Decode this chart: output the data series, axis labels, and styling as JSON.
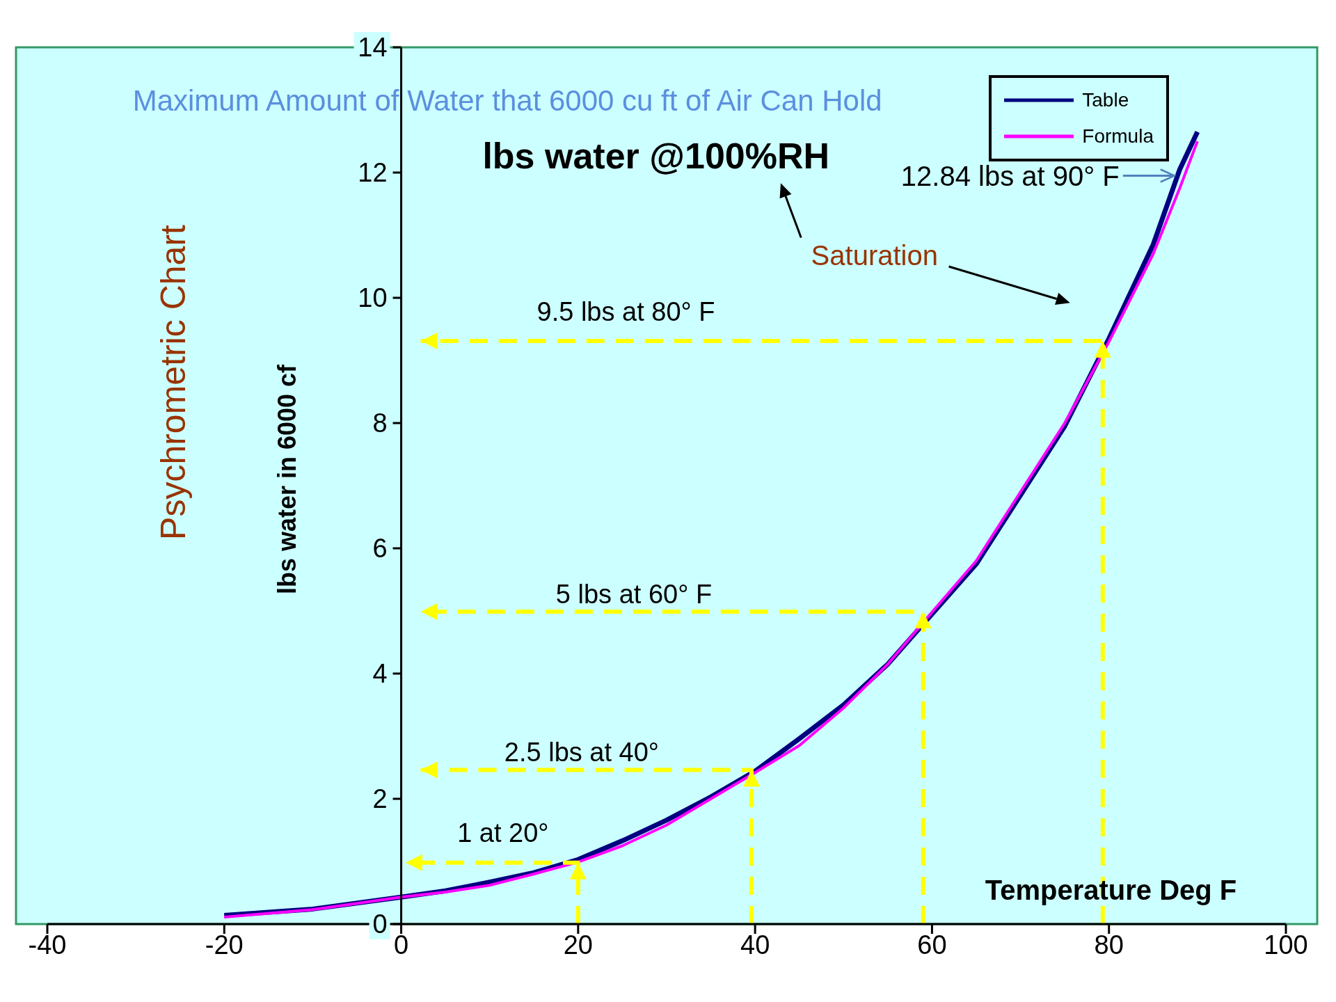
{
  "chart_data": {
    "type": "line",
    "title": "Maximum Amount of Water that 6000 cu ft of Air Can Hold",
    "subtitle": "lbs water @100%RH",
    "xlabel": "Temperature Deg F",
    "ylabel": "lbs water in 6000 cf",
    "x": [
      -20,
      -10,
      0,
      5,
      10,
      15,
      20,
      25,
      30,
      35,
      40,
      45,
      50,
      55,
      60,
      65,
      70,
      75,
      80,
      85,
      88,
      90
    ],
    "series": [
      {
        "name": "Table",
        "color": "#000080",
        "values": [
          0.14,
          0.24,
          0.43,
          0.53,
          0.67,
          0.82,
          1.03,
          1.33,
          1.66,
          2.03,
          2.44,
          2.96,
          3.5,
          4.15,
          4.95,
          5.75,
          6.85,
          7.95,
          9.35,
          10.85,
          12.05,
          12.65
        ]
      },
      {
        "name": "Formula",
        "color": "#ff00ff",
        "values": [
          0.11,
          0.23,
          0.43,
          0.51,
          0.62,
          0.8,
          0.99,
          1.25,
          1.58,
          2.0,
          2.42,
          2.85,
          3.45,
          4.15,
          4.98,
          5.8,
          6.9,
          8.0,
          9.3,
          10.7,
          11.75,
          12.5
        ]
      },
      {
        "color": "#ffff00",
        "line_style": "dashed",
        "x": [
          20,
          20,
          0.5
        ],
        "values": [
          0,
          0.98,
          0.98
        ]
      },
      {
        "color": "#ffff00",
        "line_style": "dashed",
        "x": [
          39.6,
          39.6,
          2.2
        ],
        "values": [
          0,
          2.46,
          2.46
        ]
      },
      {
        "color": "#ffff00",
        "line_style": "dashed",
        "x": [
          59,
          59,
          2.2
        ],
        "values": [
          0,
          4.99,
          4.99
        ]
      },
      {
        "color": "#ffff00",
        "line_style": "dashed",
        "x": [
          79.3,
          79.3,
          2.2
        ],
        "values": [
          0,
          9.31,
          9.31
        ]
      }
    ],
    "annotations": [
      "Psychrometric Chart",
      "Saturation",
      {
        "text": "12.84 lbs at 90° F",
        "x": 87.4,
        "y": 11.95
      },
      "9.5 lbs  at 80°  F",
      "5 lbs at 60° F",
      "2.5 lbs at 40°",
      {
        "text": "1 at 20°",
        "x": 20,
        "y": 0.98
      }
    ],
    "xlim": [
      -40,
      100
    ],
    "xticks": [
      -40,
      -20,
      0,
      20,
      40,
      60,
      80,
      100
    ],
    "ylim": [
      0,
      14
    ],
    "yticks": [
      0,
      2,
      4,
      6,
      8,
      10,
      12,
      14
    ],
    "legend": "top right",
    "marker": "none",
    "line_style": "solid"
  }
}
